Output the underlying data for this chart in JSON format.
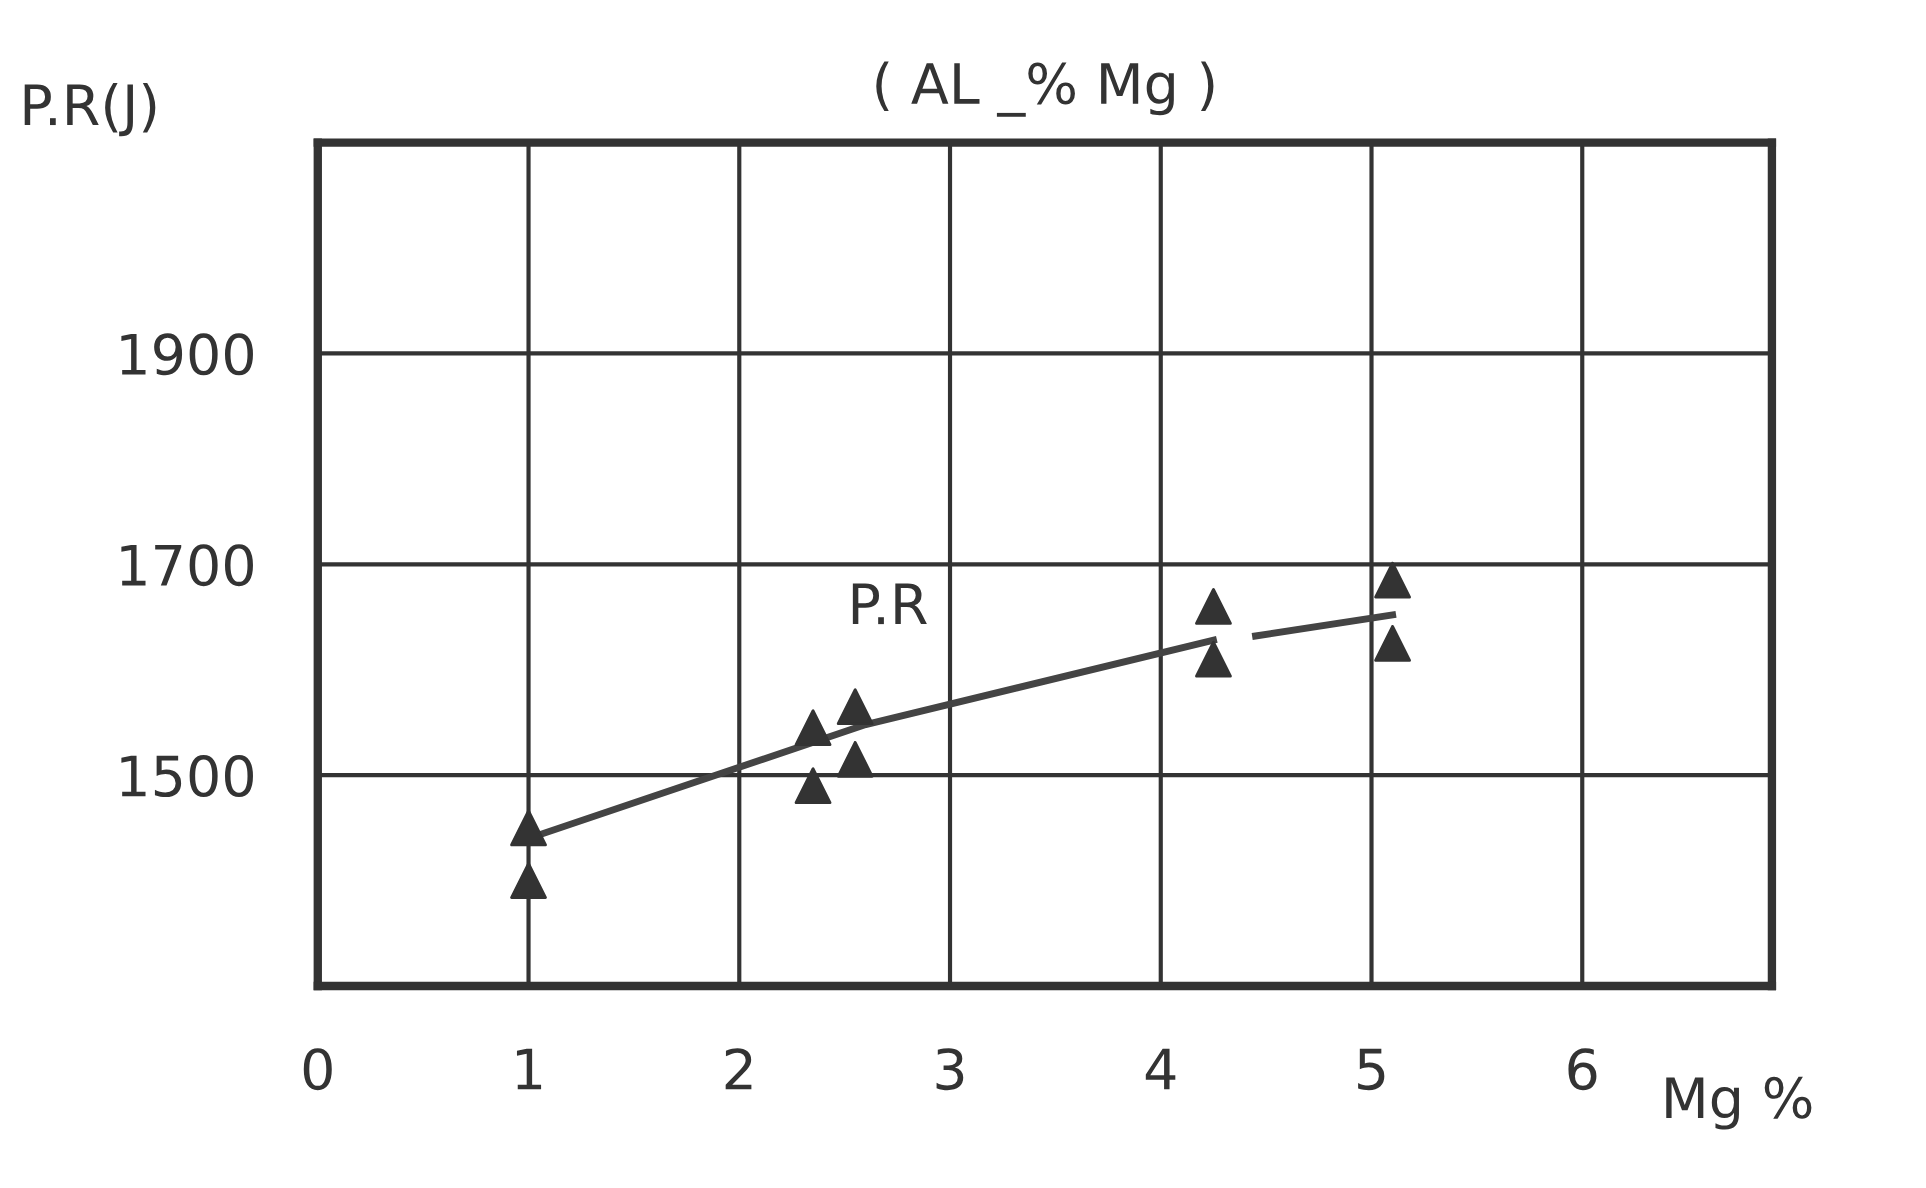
{
  "chart_data": {
    "type": "scatter",
    "title": "( AL _% Mg )",
    "xlabel": "Mg %",
    "ylabel": "P.R(J)",
    "xlim": [
      0,
      6.9
    ],
    "xticks": [
      0,
      1,
      2,
      3,
      4,
      5,
      6
    ],
    "ylim": [
      1300,
      2100
    ],
    "yticks": [
      {
        "value": 1300,
        "label": null
      },
      1500,
      1700,
      1900,
      {
        "value": 2100,
        "label": null
      }
    ],
    "grid": true,
    "marker": "triangle",
    "series": [
      {
        "color": "#333333",
        "x": [
          1,
          1,
          2.35,
          2.35,
          2.55,
          2.55,
          4.25,
          4.25,
          5.1,
          5.1
        ],
        "values": [
          1450,
          1400,
          1545,
          1490,
          1565,
          1515,
          1660,
          1610,
          1685,
          1625
        ]
      },
      {
        "type": "line",
        "name": "P.R",
        "color": "#444444",
        "line_style": "solid",
        "marker": "none",
        "x": [
          1,
          2.6,
          4.25
        ],
        "values": [
          1440,
          1548,
          1628
        ]
      },
      {
        "type": "line",
        "color": "#444444",
        "line_style": "solid",
        "marker": "none",
        "x": [
          4.45,
          5.1
        ],
        "values": [
          1632,
          1652
        ]
      }
    ]
  }
}
